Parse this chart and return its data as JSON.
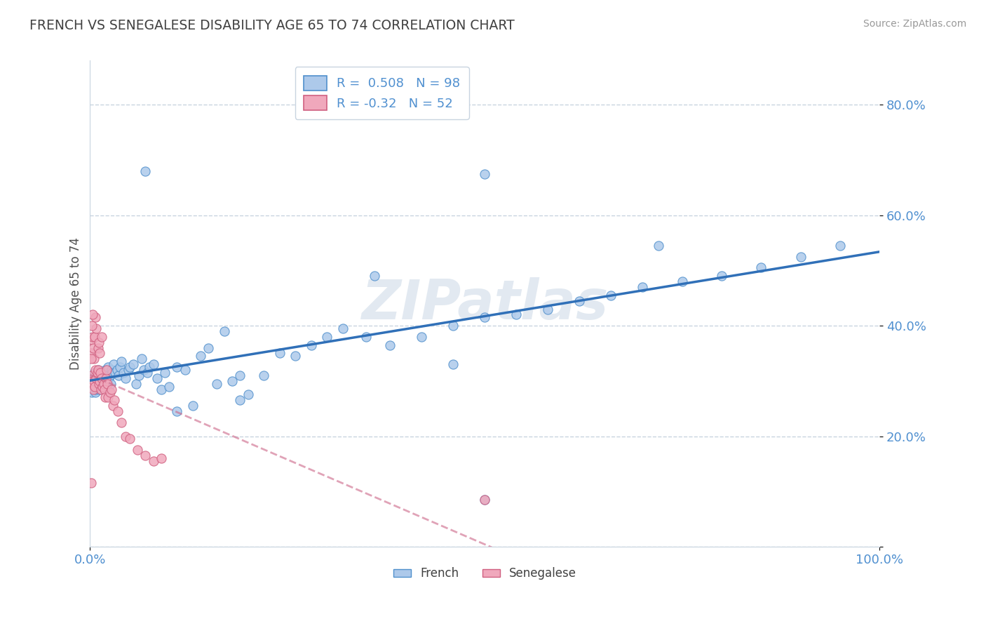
{
  "title": "FRENCH VS SENEGALESE DISABILITY AGE 65 TO 74 CORRELATION CHART",
  "source": "Source: ZipAtlas.com",
  "ylabel": "Disability Age 65 to 74",
  "xlim": [
    0.0,
    1.0
  ],
  "ylim": [
    0.0,
    0.88
  ],
  "yticks": [
    0.0,
    0.2,
    0.4,
    0.6,
    0.8
  ],
  "ytick_labels": [
    "",
    "20.0%",
    "40.0%",
    "60.0%",
    "80.0%"
  ],
  "xticks": [
    0.0,
    1.0
  ],
  "xtick_labels": [
    "0.0%",
    "100.0%"
  ],
  "french_R": 0.508,
  "french_N": 98,
  "senegalese_R": -0.32,
  "senegalese_N": 52,
  "french_color": "#adc9ea",
  "senegalese_color": "#f0a8bc",
  "french_edge_color": "#5090cc",
  "senegalese_edge_color": "#d06080",
  "french_line_color": "#3070b8",
  "senegalese_line_color": "#cc6688",
  "title_color": "#404040",
  "axis_label_color": "#505050",
  "tick_color": "#5090d0",
  "grid_color": "#c8d4e0",
  "watermark": "ZIPatlas",
  "background_color": "#ffffff",
  "french_x": [
    0.002,
    0.003,
    0.003,
    0.004,
    0.004,
    0.005,
    0.005,
    0.006,
    0.006,
    0.007,
    0.007,
    0.008,
    0.008,
    0.009,
    0.009,
    0.01,
    0.01,
    0.011,
    0.011,
    0.012,
    0.012,
    0.013,
    0.014,
    0.015,
    0.016,
    0.017,
    0.018,
    0.019,
    0.02,
    0.021,
    0.022,
    0.023,
    0.024,
    0.025,
    0.026,
    0.027,
    0.028,
    0.03,
    0.032,
    0.034,
    0.036,
    0.038,
    0.04,
    0.042,
    0.045,
    0.048,
    0.05,
    0.055,
    0.058,
    0.062,
    0.065,
    0.068,
    0.072,
    0.075,
    0.08,
    0.085,
    0.09,
    0.095,
    0.1,
    0.11,
    0.12,
    0.13,
    0.14,
    0.15,
    0.16,
    0.17,
    0.18,
    0.19,
    0.2,
    0.22,
    0.24,
    0.26,
    0.28,
    0.3,
    0.32,
    0.35,
    0.38,
    0.42,
    0.46,
    0.5,
    0.54,
    0.58,
    0.62,
    0.66,
    0.7,
    0.75,
    0.8,
    0.85,
    0.9,
    0.95,
    0.11,
    0.46,
    0.5,
    0.19,
    0.36,
    0.72,
    0.5,
    0.07
  ],
  "french_y": [
    0.28,
    0.29,
    0.3,
    0.295,
    0.31,
    0.285,
    0.305,
    0.29,
    0.315,
    0.28,
    0.295,
    0.285,
    0.3,
    0.31,
    0.295,
    0.305,
    0.32,
    0.295,
    0.31,
    0.285,
    0.3,
    0.315,
    0.305,
    0.31,
    0.295,
    0.305,
    0.315,
    0.32,
    0.31,
    0.3,
    0.315,
    0.325,
    0.305,
    0.31,
    0.295,
    0.32,
    0.315,
    0.33,
    0.315,
    0.32,
    0.31,
    0.325,
    0.335,
    0.315,
    0.305,
    0.32,
    0.325,
    0.33,
    0.295,
    0.31,
    0.34,
    0.32,
    0.315,
    0.325,
    0.33,
    0.305,
    0.285,
    0.315,
    0.29,
    0.325,
    0.32,
    0.255,
    0.345,
    0.36,
    0.295,
    0.39,
    0.3,
    0.31,
    0.275,
    0.31,
    0.35,
    0.345,
    0.365,
    0.38,
    0.395,
    0.38,
    0.365,
    0.38,
    0.4,
    0.415,
    0.42,
    0.43,
    0.445,
    0.455,
    0.47,
    0.48,
    0.49,
    0.505,
    0.525,
    0.545,
    0.245,
    0.33,
    0.085,
    0.265,
    0.49,
    0.545,
    0.675,
    0.68
  ],
  "senegalese_x": [
    0.001,
    0.001,
    0.002,
    0.002,
    0.003,
    0.003,
    0.004,
    0.004,
    0.005,
    0.005,
    0.006,
    0.006,
    0.007,
    0.007,
    0.008,
    0.008,
    0.009,
    0.01,
    0.01,
    0.011,
    0.011,
    0.012,
    0.012,
    0.013,
    0.014,
    0.015,
    0.016,
    0.017,
    0.018,
    0.019,
    0.02,
    0.021,
    0.022,
    0.023,
    0.025,
    0.027,
    0.029,
    0.031,
    0.035,
    0.04,
    0.045,
    0.05,
    0.06,
    0.07,
    0.08,
    0.09,
    0.001,
    0.002,
    0.003,
    0.015,
    0.001,
    0.5
  ],
  "senegalese_y": [
    0.31,
    0.35,
    0.3,
    0.375,
    0.295,
    0.38,
    0.285,
    0.36,
    0.3,
    0.34,
    0.29,
    0.38,
    0.32,
    0.415,
    0.305,
    0.395,
    0.315,
    0.32,
    0.36,
    0.295,
    0.37,
    0.3,
    0.35,
    0.315,
    0.285,
    0.305,
    0.29,
    0.295,
    0.285,
    0.27,
    0.305,
    0.32,
    0.295,
    0.27,
    0.28,
    0.285,
    0.255,
    0.265,
    0.245,
    0.225,
    0.2,
    0.195,
    0.175,
    0.165,
    0.155,
    0.16,
    0.34,
    0.4,
    0.42,
    0.38,
    0.115,
    0.085
  ]
}
